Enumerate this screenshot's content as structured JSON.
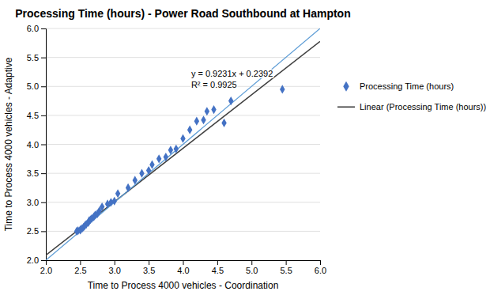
{
  "chart_data": {
    "type": "scatter",
    "title": "Processing Time (hours) - Power Road Southbound at Hampton",
    "x_label": "Time to Process 4000 vehicles - Coordination",
    "y_label": "Time to Process 4000 vehicles - Adaptive",
    "xlim": [
      2,
      6
    ],
    "ylim": [
      2,
      6
    ],
    "xticks": [
      {
        "value": 2,
        "label": "2.0"
      },
      {
        "value": 2.5,
        "label": "2.5"
      },
      {
        "value": 3,
        "label": "3.0"
      },
      {
        "value": 3.5,
        "label": "3.5"
      },
      {
        "value": 4,
        "label": "4.0"
      },
      {
        "value": 4.5,
        "label": "4.5"
      },
      {
        "value": 5,
        "label": "5.0"
      },
      {
        "value": 5.5,
        "label": "5.5"
      },
      {
        "value": 6,
        "label": "6.0"
      }
    ],
    "yticks": [
      {
        "value": 2,
        "label": "2.0"
      },
      {
        "value": 2.5,
        "label": "2.5"
      },
      {
        "value": 3,
        "label": "3.0"
      },
      {
        "value": 3.5,
        "label": "3.5"
      },
      {
        "value": 4,
        "label": "4.0"
      },
      {
        "value": 4.5,
        "label": "4.5"
      },
      {
        "value": 5,
        "label": "5.0"
      },
      {
        "value": 5.5,
        "label": "5.5"
      },
      {
        "value": 6,
        "label": "6.0"
      }
    ],
    "grid": "y",
    "legend": "right",
    "series": [
      {
        "name": "Processing Time (hours)",
        "type": "scatter",
        "marker": "diamond",
        "color": "#4472C4",
        "x": [
          2.45,
          2.47,
          2.5,
          2.51,
          2.53,
          2.55,
          2.57,
          2.59,
          2.62,
          2.63,
          2.65,
          2.67,
          2.7,
          2.72,
          2.75,
          2.78,
          2.82,
          2.9,
          2.95,
          3.0,
          3.05,
          3.2,
          3.3,
          3.4,
          3.5,
          3.55,
          3.65,
          3.75,
          3.82,
          3.9,
          4.0,
          4.1,
          4.2,
          4.3,
          4.35,
          4.45,
          4.6,
          4.7,
          5.45
        ],
        "values": [
          2.5,
          2.51,
          2.52,
          2.53,
          2.55,
          2.57,
          2.6,
          2.62,
          2.65,
          2.68,
          2.7,
          2.72,
          2.75,
          2.78,
          2.8,
          2.85,
          2.92,
          2.97,
          3.0,
          3.02,
          3.15,
          3.25,
          3.38,
          3.5,
          3.55,
          3.65,
          3.75,
          3.78,
          3.9,
          3.92,
          4.1,
          4.25,
          4.4,
          4.42,
          4.57,
          4.6,
          4.37,
          4.75,
          4.95
        ]
      },
      {
        "name": "Linear (Processing Time (hours))",
        "type": "line",
        "color": "#404040",
        "x": [
          2,
          6
        ],
        "values": [
          2.0854,
          5.7778
        ]
      },
      {
        "type": "line",
        "color": "#5B9BD5",
        "x": [
          2,
          6
        ],
        "values": [
          2,
          6
        ]
      }
    ],
    "annotations": [
      {
        "text": [
          "y = 0.9231x + 0.2392",
          "R² = 0.9925"
        ],
        "x": 4.12,
        "y": 5.32
      }
    ]
  }
}
